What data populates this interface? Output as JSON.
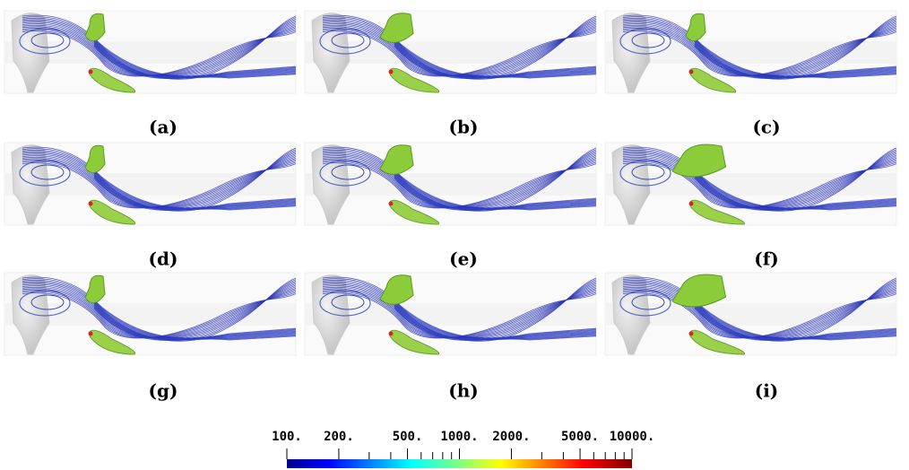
{
  "panels": [
    {
      "label": "(a)"
    },
    {
      "label": "(b)"
    },
    {
      "label": "(c)"
    },
    {
      "label": "(d)"
    },
    {
      "label": "(e)"
    },
    {
      "label": "(f)"
    },
    {
      "label": "(g)"
    },
    {
      "label": "(h)"
    },
    {
      "label": "(i)"
    }
  ],
  "colorbar": {
    "scale": "log",
    "lim": [
      100,
      10000
    ],
    "ticks": [
      {
        "value": 100,
        "label": "100."
      },
      {
        "value": 200,
        "label": "200."
      },
      {
        "value": 500,
        "label": "500."
      },
      {
        "value": 1000,
        "label": "1000."
      },
      {
        "value": 2000,
        "label": "2000."
      },
      {
        "value": 5000,
        "label": "5000."
      },
      {
        "value": 10000,
        "label": "10000."
      }
    ],
    "minor_ticks": [
      300,
      400,
      600,
      700,
      800,
      900,
      3000,
      4000,
      6000,
      7000,
      8000,
      9000
    ]
  }
}
